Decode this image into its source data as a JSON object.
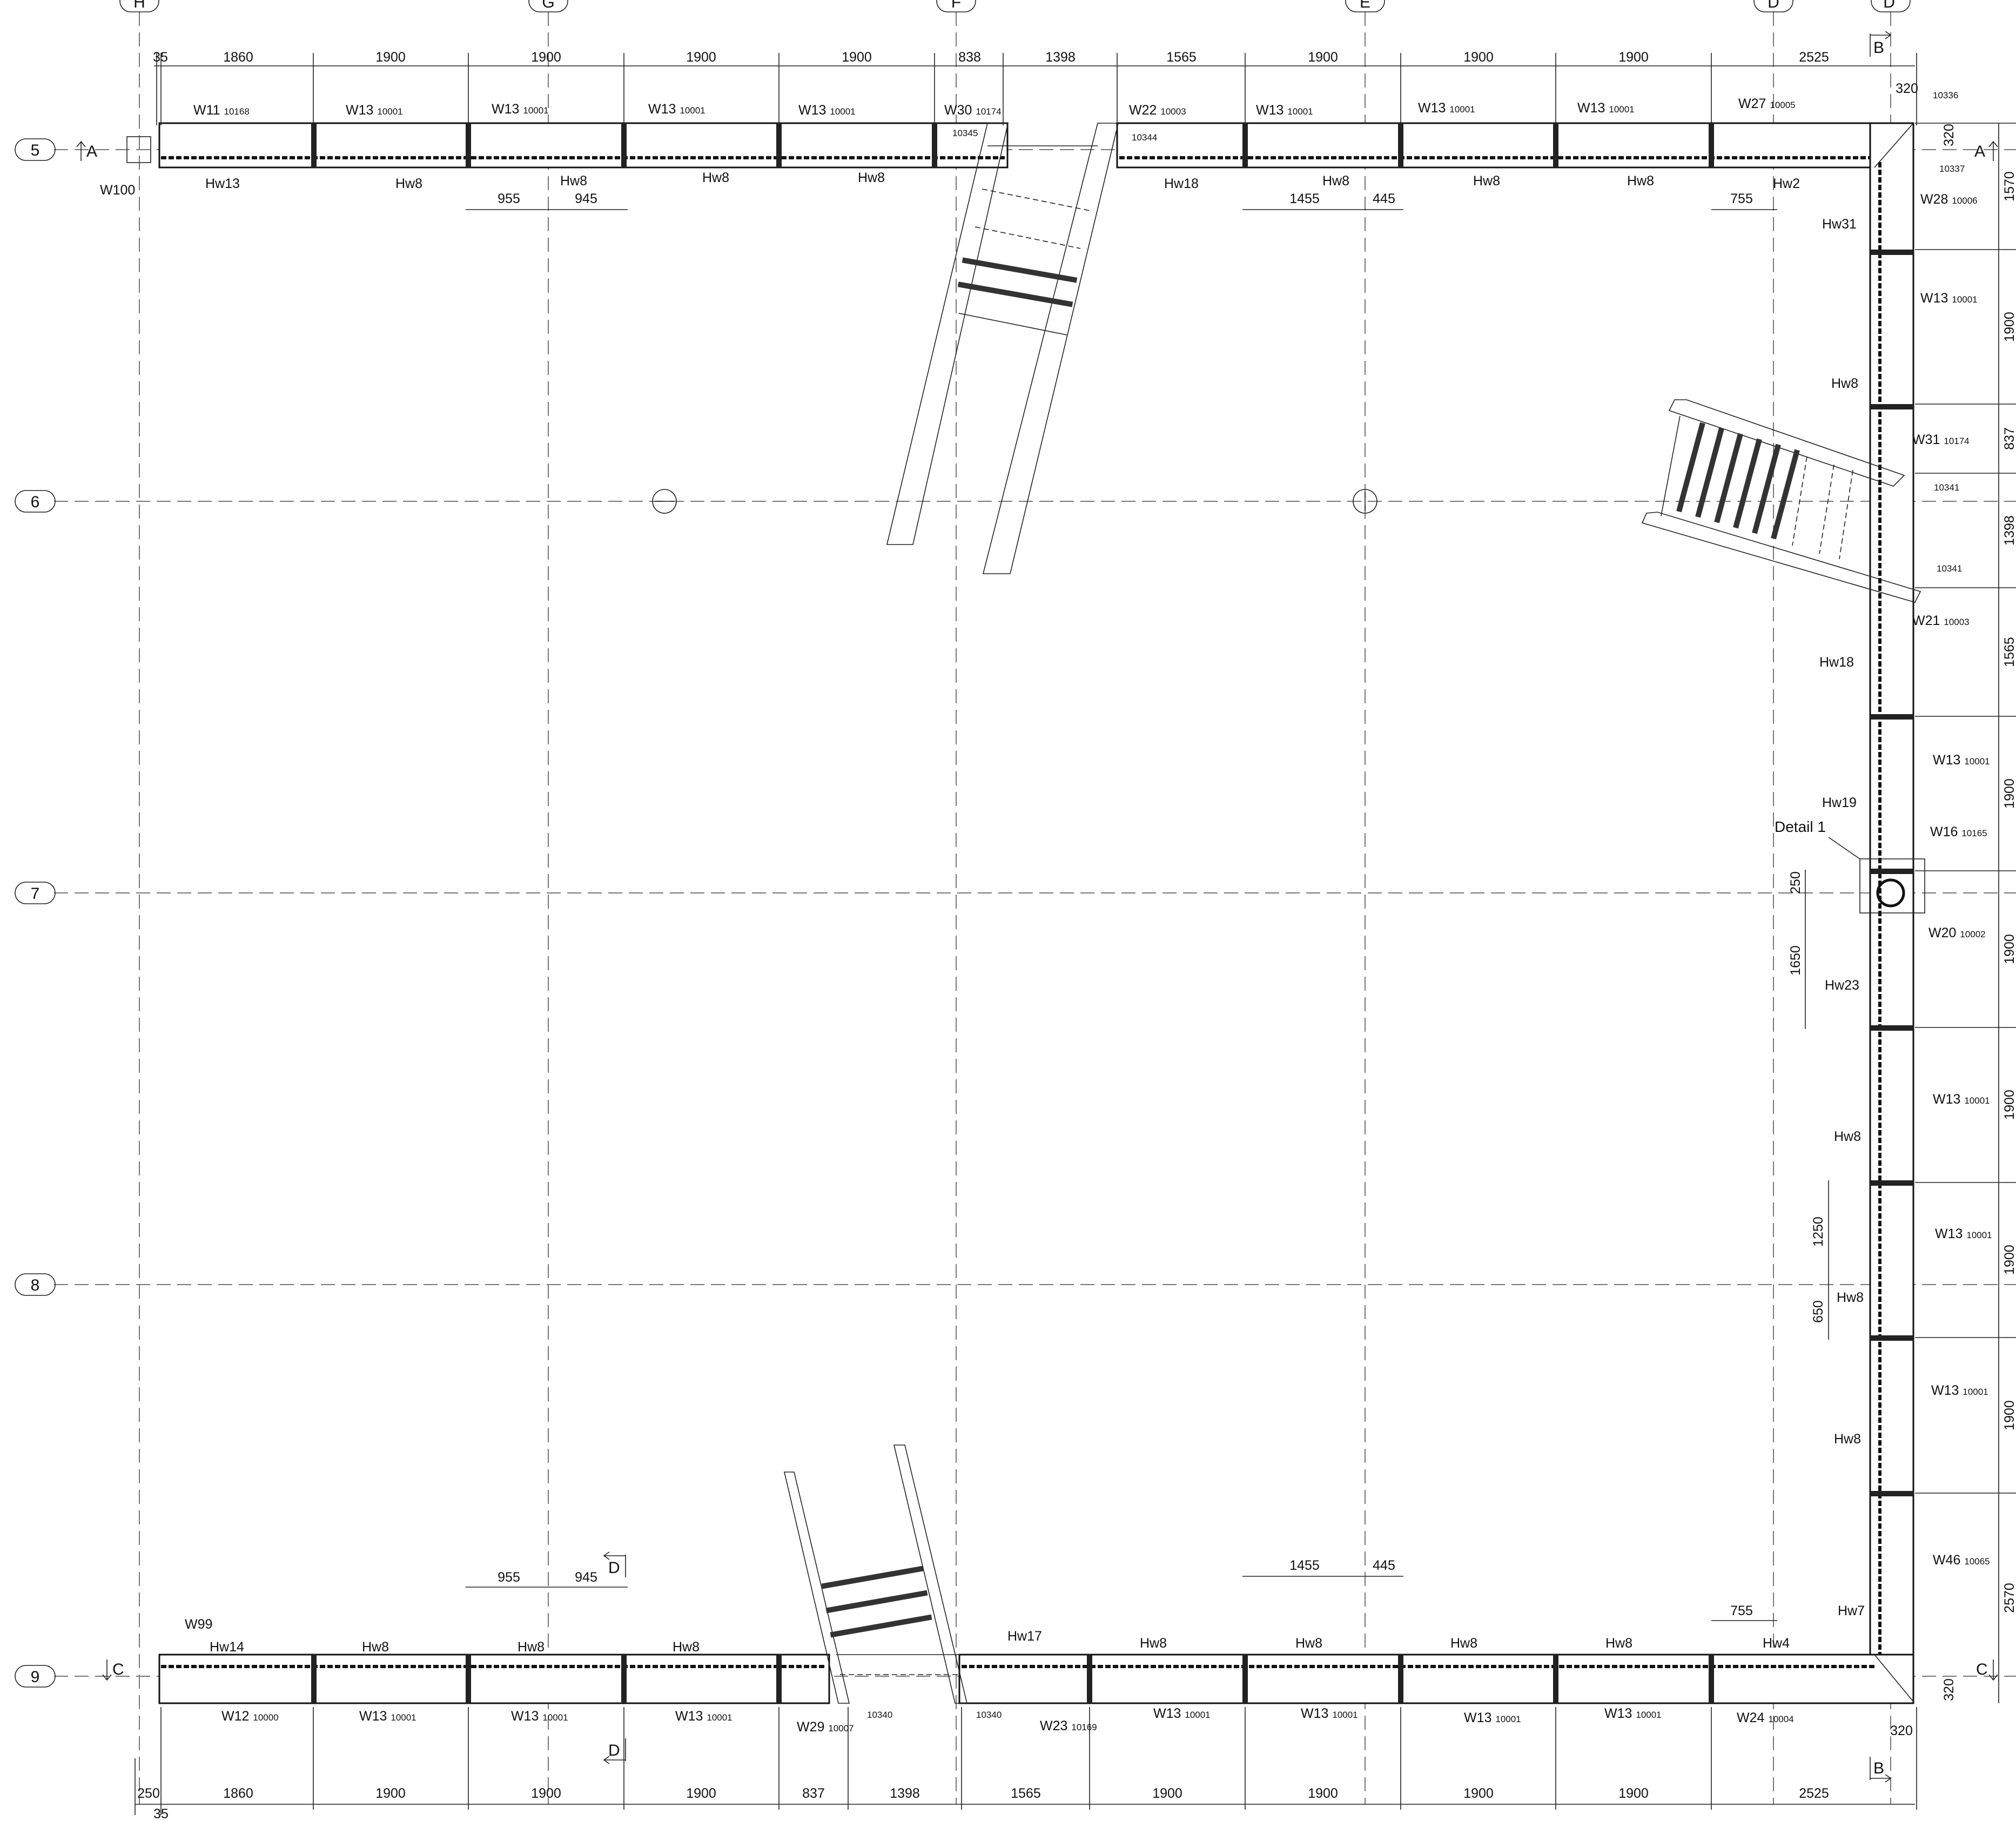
{
  "grid_columns": [
    "H",
    "G",
    "F",
    "E",
    "D",
    "D'"
  ],
  "grid_rows": [
    "5",
    "6",
    "7",
    "8",
    "9"
  ],
  "top_dims": [
    "35",
    "1860",
    "1900",
    "1900",
    "1900",
    "1900",
    "838",
    "1398",
    "1565",
    "1900",
    "1900",
    "1900",
    "2525"
  ],
  "top_sub_dims_left": [
    "955",
    "945"
  ],
  "top_sub_dims_right": [
    "1455",
    "445"
  ],
  "top_sub_dim_d": "755",
  "bottom_dims": [
    "250",
    "1860",
    "1900",
    "1900",
    "1900",
    "837",
    "1398",
    "1565",
    "1900",
    "1900",
    "1900",
    "1900",
    "2525"
  ],
  "bottom_extra_35": "35",
  "bottom_sub_dims_left": [
    "955",
    "945"
  ],
  "bottom_sub_dims_right": [
    "1455",
    "445"
  ],
  "bottom_sub_dim_d": "755",
  "right_dims": [
    "1570",
    "1900",
    "837",
    "1398",
    "1565",
    "1900",
    "1900",
    "1900",
    "1900",
    "1900",
    "2570"
  ],
  "corner_320": "320",
  "inner_dims": {
    "d250": "250",
    "d1650": "1650",
    "d1250": "1250",
    "d650": "650"
  },
  "detail_label": "Detail 1",
  "section_marks": {
    "A": "A",
    "B": "B",
    "C": "C",
    "D": "D"
  },
  "top_wall_labels": [
    {
      "w": "W11",
      "n": "10168"
    },
    {
      "w": "W13",
      "n": "10001"
    },
    {
      "w": "W13",
      "n": "10001"
    },
    {
      "w": "W13",
      "n": "10001"
    },
    {
      "w": "W13",
      "n": "10001"
    },
    {
      "w": "W30",
      "n": "10174"
    },
    {
      "w": "W22",
      "n": "10003"
    },
    {
      "w": "W13",
      "n": "10001"
    },
    {
      "w": "W13",
      "n": "10001"
    },
    {
      "w": "W13",
      "n": "10001"
    },
    {
      "w": "W27",
      "n": "10005"
    }
  ],
  "top_hw_labels": [
    "Hw13",
    "Hw8",
    "Hw8",
    "Hw8",
    "Hw8",
    "Hw18",
    "Hw8",
    "Hw8",
    "Hw8",
    "Hw2"
  ],
  "bottom_wall_labels": [
    {
      "w": "W12",
      "n": "10000"
    },
    {
      "w": "W13",
      "n": "10001"
    },
    {
      "w": "W13",
      "n": "10001"
    },
    {
      "w": "W13",
      "n": "10001"
    },
    {
      "w": "W29",
      "n": "10007"
    },
    {
      "w": "W23",
      "n": "10169"
    },
    {
      "w": "W13",
      "n": "10001"
    },
    {
      "w": "W13",
      "n": "10001"
    },
    {
      "w": "W13",
      "n": "10001"
    },
    {
      "w": "W13",
      "n": "10001"
    },
    {
      "w": "W24",
      "n": "10004"
    }
  ],
  "bottom_hw_labels": [
    "Hw14",
    "Hw8",
    "Hw8",
    "Hw8",
    "Hw17",
    "Hw8",
    "Hw8",
    "Hw8",
    "Hw8",
    "Hw4"
  ],
  "right_wall_labels": [
    {
      "w": "W28",
      "n": "10006"
    },
    {
      "w": "W13",
      "n": "10001"
    },
    {
      "w": "W31",
      "n": "10174"
    },
    {
      "w": "W21",
      "n": "10003"
    },
    {
      "w": "W13",
      "n": "10001"
    },
    {
      "w": "W16",
      "n": "10165"
    },
    {
      "w": "W20",
      "n": "10002"
    },
    {
      "w": "W13",
      "n": "10001"
    },
    {
      "w": "W13",
      "n": "10001"
    },
    {
      "w": "W13",
      "n": "10001"
    },
    {
      "w": "W46",
      "n": "10065"
    }
  ],
  "right_hw_labels": [
    "Hw31",
    "Hw8",
    "Hw18",
    "Hw19",
    "Hw23",
    "Hw8",
    "Hw8",
    "Hw8",
    "Hw7"
  ],
  "misc_labels": {
    "w100": "W100",
    "w99": "W99",
    "n10336": "10336",
    "n10337": "10337",
    "n10345": "10345",
    "n10344": "10344",
    "n10341a": "10341",
    "n10341b": "10341",
    "n10340a": "10340",
    "n10340b": "10340"
  }
}
